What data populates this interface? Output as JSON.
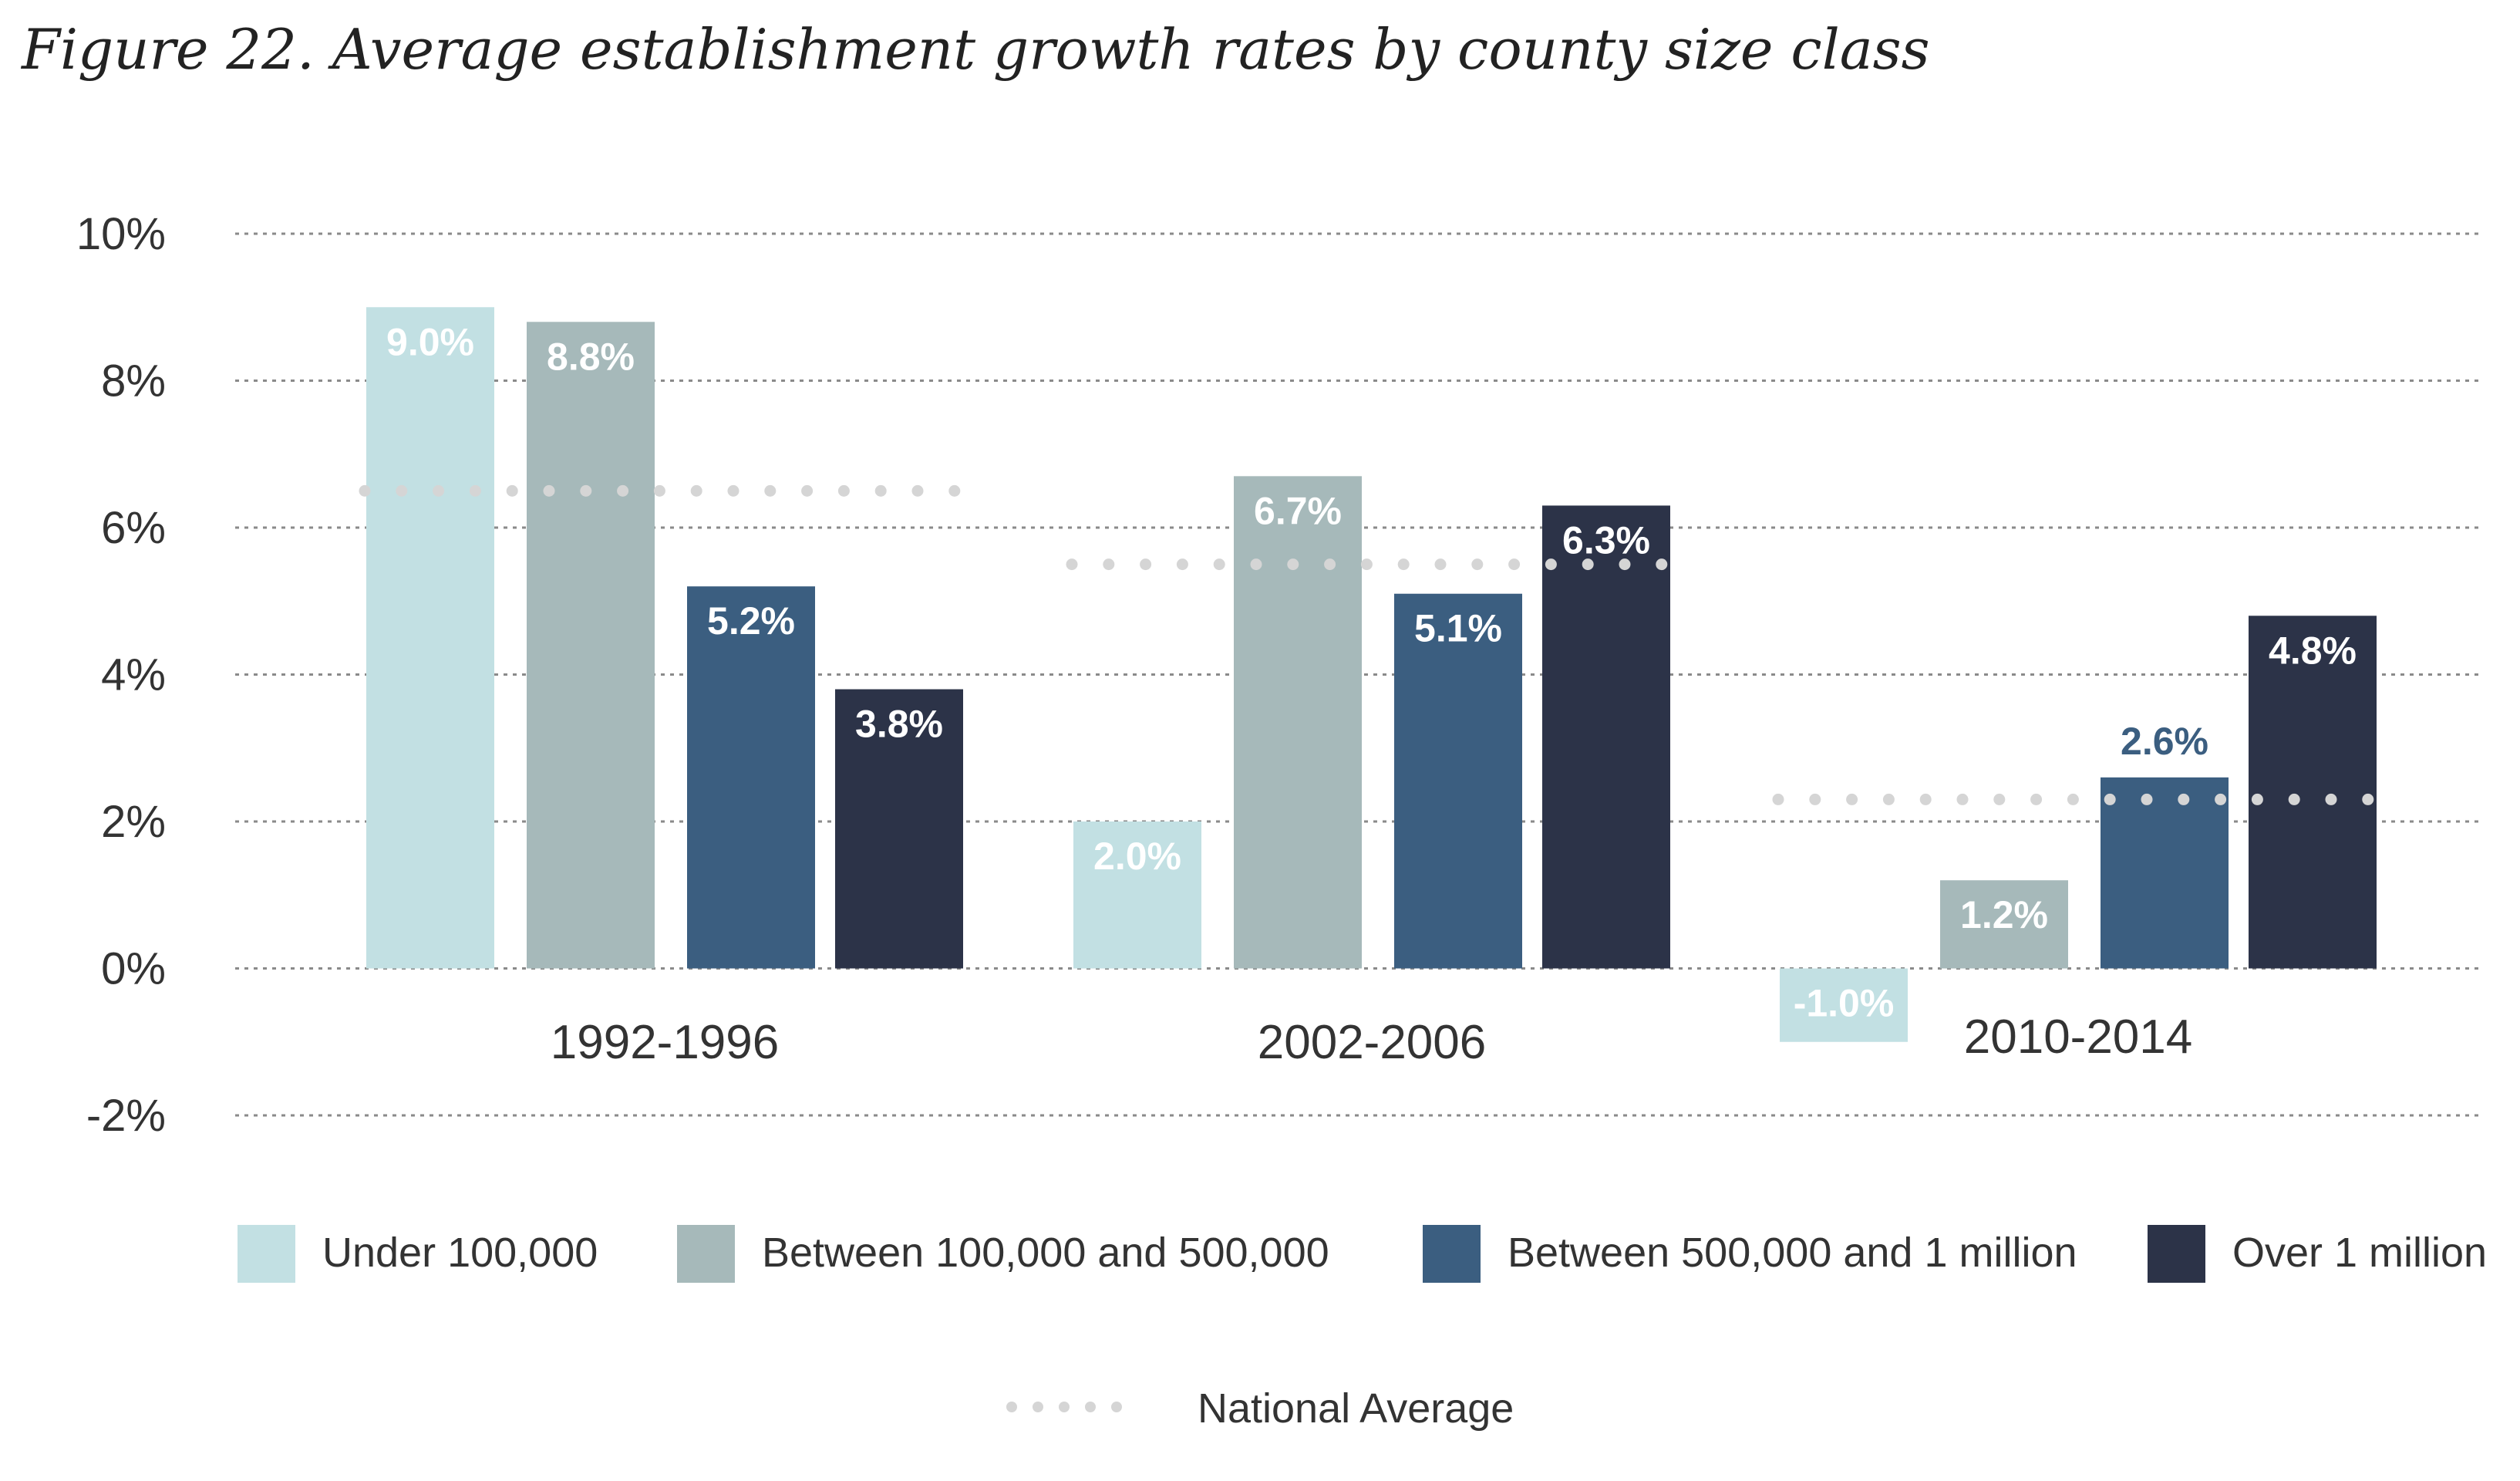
{
  "title": "Figure 22. Average establishment growth rates by county size class",
  "chart_data": {
    "type": "bar",
    "title": "Figure 22. Average establishment growth rates by county size class",
    "xlabel": "",
    "ylabel": "",
    "ylim": [
      -2,
      10
    ],
    "yticks": [
      10,
      8,
      6,
      4,
      2,
      0,
      -2
    ],
    "ytick_labels": [
      "10%",
      "8%",
      "6%",
      "4%",
      "2%",
      "0%",
      "-2%"
    ],
    "grid": true,
    "categories": [
      "1992-1996",
      "2002-2006",
      "2010-2014"
    ],
    "series": [
      {
        "name": "Under 100,000",
        "color": "#c2e0e3",
        "values": [
          9.0,
          2.0,
          -1.0
        ],
        "labels": [
          "9.0%",
          "2.0%",
          "-1.0%"
        ]
      },
      {
        "name": "Between 100,000 and 500,000",
        "color": "#a6b9ba",
        "values": [
          8.8,
          6.7,
          1.2
        ],
        "labels": [
          "8.8%",
          "6.7%",
          "1.2%"
        ]
      },
      {
        "name": "Between 500,000 and 1 million",
        "color": "#3b5e80",
        "values": [
          5.2,
          5.1,
          2.6
        ],
        "labels": [
          "5.2%",
          "5.1%",
          "2.6%"
        ]
      },
      {
        "name": "Over 1 million",
        "color": "#2c3348",
        "values": [
          3.8,
          6.3,
          4.8
        ],
        "labels": [
          "3.8%",
          "6.3%",
          "4.8%"
        ]
      }
    ],
    "national_average": {
      "name": "National Average",
      "color": "#d5d5d5",
      "values": [
        6.5,
        5.5,
        2.3
      ]
    },
    "legend_placement": "bottom"
  }
}
